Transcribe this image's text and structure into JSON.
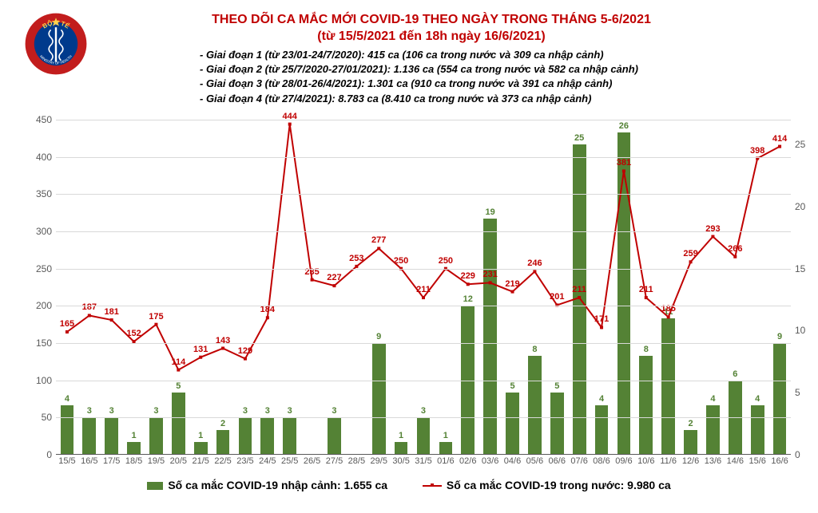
{
  "title_line1": "THEO DÕI CA MẮC MỚI COVID-19 THEO NGÀY TRONG THÁNG 5-6/2021",
  "title_line2": "(từ 15/5/2021 đến 18h ngày 16/6/2021)",
  "stages": [
    "- Giai đoạn 1 (từ 23/01-24/7/2020): 415 ca (106 ca trong nước và 309 ca nhập cảnh)",
    "- Giai đoạn 2 (từ 25/7/2020-27/01/2021): 1.136 ca (554 ca trong nước và 582 ca nhập cảnh)",
    "- Giai đoạn 3 (từ 28/01-26/4/2021): 1.301 ca (910 ca trong nước và 391 ca nhập cảnh)",
    "- Giai đoạn 4 (từ 27/4/2021): 8.783 ca (8.410 ca trong nước và 373 ca nhập cảnh)"
  ],
  "chart": {
    "left_axis": {
      "min": 0,
      "max": 450,
      "step": 50,
      "ticks": [
        0,
        50,
        100,
        150,
        200,
        250,
        300,
        350,
        400,
        450
      ]
    },
    "right_axis": {
      "min": 0,
      "max": 27,
      "ticks": [
        0,
        5,
        10,
        15,
        20,
        25
      ]
    },
    "categories": [
      "15/5",
      "16/5",
      "17/5",
      "18/5",
      "19/5",
      "20/5",
      "21/5",
      "22/5",
      "23/5",
      "24/5",
      "25/5",
      "26/5",
      "27/5",
      "28/5",
      "29/5",
      "30/5",
      "31/5",
      "01/6",
      "02/6",
      "03/6",
      "04/6",
      "05/6",
      "06/6",
      "07/6",
      "08/6",
      "09/6",
      "10/6",
      "11/6",
      "12/6",
      "13/6",
      "14/6",
      "15/6",
      "16/6"
    ],
    "bar_values": [
      4,
      3,
      3,
      1,
      3,
      5,
      1,
      2,
      3,
      3,
      3,
      null,
      3,
      null,
      9,
      1,
      3,
      1,
      12,
      19,
      5,
      8,
      5,
      25,
      4,
      26,
      8,
      11,
      2,
      4,
      6,
      4,
      9
    ],
    "line_values": [
      165,
      187,
      181,
      152,
      175,
      114,
      131,
      143,
      129,
      184,
      444,
      235,
      227,
      253,
      277,
      250,
      211,
      250,
      229,
      231,
      219,
      246,
      201,
      211,
      171,
      381,
      211,
      185,
      259,
      293,
      266,
      398,
      414
    ],
    "bar_color": "#548235",
    "line_color": "#c00000",
    "grid_color": "#d9d9d9",
    "background_color": "#ffffff",
    "bar_width_ratio": 0.6,
    "logo": {
      "outer_color": "#c21d1d",
      "inner_color": "#003a8c",
      "star_color": "#ffd24d",
      "top_text": "BỘ Y TẾ",
      "bottom_text": "MINISTRY OF HEALTH"
    }
  },
  "legend": {
    "bar_label": "Số ca mắc COVID-19 nhập cảnh: 1.655 ca",
    "line_label": "Số ca mắc COVID-19 trong nước: 9.980 ca"
  }
}
